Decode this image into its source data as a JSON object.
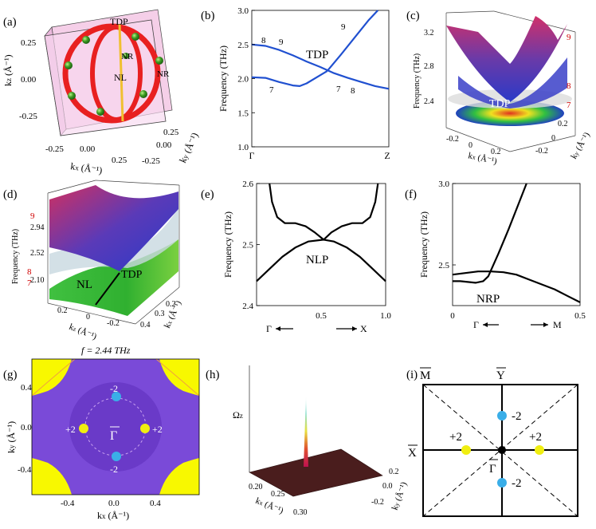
{
  "colors": {
    "band_blue": "#2050d0",
    "ring_red": "#e82020",
    "dot_blue": "#3aaee8",
    "dot_yellow": "#f0ee10",
    "surf_purple": "#6a3fd0",
    "yellow_bg": "#f8f800"
  },
  "panel_a": {
    "label": "(a)",
    "axis_z_label": "k",
    "axis_z_sub": "z",
    "axis_z_unit": " (Å⁻¹)",
    "axis_x_label": "k",
    "axis_x_sub": "x",
    "axis_x_unit": " (Å⁻¹)",
    "axis_y_label": "k",
    "axis_y_sub": "y",
    "axis_y_unit": " (Å⁻¹)",
    "z_ticks": [
      "0.25",
      "0.00",
      "-0.25"
    ],
    "x_ticks": [
      "-0.25",
      "0.00",
      "0.25"
    ],
    "y_ticks": [
      "0.25",
      "0.00",
      "-0.25"
    ],
    "tdp_label": "TDP",
    "nl_label": "NL",
    "nr_label_1": "NR",
    "nr_label_2": "NR"
  },
  "chart_data": [
    {
      "panel": "(b)",
      "type": "line",
      "ylabel": "Frequency (THz)",
      "ylim": [
        1.0,
        3.0
      ],
      "y_ticks": [
        "3.0",
        "2.5",
        "2.0",
        "1.5",
        "1.0"
      ],
      "x_ticks": [
        "Γ",
        "Z"
      ],
      "annotation": "TDP",
      "band_labels": [
        "8",
        "9",
        "7",
        "9",
        "7",
        "8"
      ],
      "series": [
        {
          "name": "band 8",
          "x": [
            0.0,
            0.1,
            0.2,
            0.3,
            0.4,
            0.5,
            0.6,
            0.7,
            0.8,
            0.9,
            1.0
          ],
          "values": [
            2.5,
            2.48,
            2.42,
            2.34,
            2.25,
            2.17,
            2.08,
            2.01,
            1.95,
            1.89,
            1.85
          ]
        },
        {
          "name": "band 7",
          "x": [
            0.0,
            0.1,
            0.2,
            0.3,
            0.35,
            0.4,
            0.5,
            0.55
          ],
          "values": [
            2.02,
            2.01,
            1.95,
            1.9,
            1.89,
            1.93,
            2.05,
            2.11
          ]
        },
        {
          "name": "band 9",
          "x": [
            0.55,
            0.65,
            0.75,
            0.85,
            0.92
          ],
          "values": [
            2.11,
            2.35,
            2.6,
            2.85,
            3.0
          ]
        }
      ]
    },
    {
      "panel": "(e)",
      "type": "line",
      "ylabel": "Frequency (THz)",
      "ylim": [
        2.4,
        2.6
      ],
      "y_ticks": [
        "2.6",
        "2.5",
        "2.4"
      ],
      "x_ticks": [
        "0.5",
        "1.0"
      ],
      "x_left": "Γ",
      "x_right": "X",
      "annotation": "NLP",
      "series": [
        {
          "name": "upper left",
          "x": [
            0.1,
            0.12,
            0.16,
            0.22,
            0.3,
            0.38,
            0.45,
            0.52
          ],
          "values": [
            2.6,
            2.57,
            2.545,
            2.535,
            2.535,
            2.53,
            2.52,
            2.508
          ]
        },
        {
          "name": "upper right",
          "x": [
            0.52,
            0.58,
            0.66,
            0.74,
            0.82,
            0.88,
            0.92,
            0.94
          ],
          "values": [
            2.508,
            2.52,
            2.53,
            2.535,
            2.535,
            2.545,
            2.57,
            2.6
          ]
        },
        {
          "name": "lower",
          "x": [
            0.0,
            0.1,
            0.2,
            0.3,
            0.4,
            0.52,
            0.6,
            0.7,
            0.8,
            0.9,
            1.0
          ],
          "values": [
            2.44,
            2.46,
            2.48,
            2.495,
            2.505,
            2.508,
            2.505,
            2.495,
            2.48,
            2.46,
            2.44
          ]
        }
      ]
    },
    {
      "panel": "(f)",
      "type": "line",
      "ylabel": "Frequency (THz)",
      "ylim": [
        2.25,
        3.0
      ],
      "y_ticks": [
        "3.0",
        "2.5"
      ],
      "x_ticks": [
        "0",
        "0.5"
      ],
      "x_left": "Γ",
      "x_right": "M",
      "annotation": "NRP",
      "series": [
        {
          "name": "flat",
          "x": [
            0.0,
            0.05,
            0.1,
            0.15,
            0.2,
            0.25,
            0.3,
            0.35,
            0.4,
            0.45,
            0.5
          ],
          "values": [
            2.44,
            2.45,
            2.46,
            2.46,
            2.455,
            2.44,
            2.41,
            2.38,
            2.35,
            2.31,
            2.27
          ]
        },
        {
          "name": "steep",
          "x": [
            0.0,
            0.03,
            0.06,
            0.09,
            0.12,
            0.14,
            0.18,
            0.22,
            0.26,
            0.29
          ],
          "values": [
            2.4,
            2.4,
            2.395,
            2.39,
            2.4,
            2.43,
            2.57,
            2.72,
            2.88,
            3.0
          ]
        }
      ]
    }
  ],
  "panel_c": {
    "label": "(c)",
    "ylabel": "Frequency (THz)",
    "y_ticks": [
      "3.2",
      "2.8",
      "2.4"
    ],
    "x_ticks": [
      "-0.2",
      "0",
      "0.2"
    ],
    "y2_ticks": [
      "0.2",
      "0",
      "-0.2"
    ],
    "band_labels": [
      "9",
      "8",
      "7"
    ],
    "annotation": "TDP",
    "kx_label": "k",
    "kx_sub": "x",
    "unit": " (Å⁻¹)",
    "ky_label": "k",
    "ky_sub": "y"
  },
  "panel_d": {
    "label": "(d)",
    "ylabel": "Frequency (THz)",
    "y_ticks": [
      "2.94",
      "2.52",
      "2.10"
    ],
    "x_ticks": [
      "0.2",
      "0",
      "-0.2"
    ],
    "z_ticks": [
      "0.2",
      "0.3",
      "0.4"
    ],
    "band_labels": [
      "9",
      "8",
      "7"
    ],
    "nl_label": "NL",
    "tdp_label": "TDP",
    "kx_label": "k",
    "kx_sub": "z",
    "unit": " (Å⁻¹)",
    "kz_label": "k",
    "kz_sub": "x"
  },
  "panel_g": {
    "label": "(g)",
    "title": "f = 2.44 THz",
    "y_ticks": [
      "0.4",
      "0.0",
      "-0.4"
    ],
    "x_ticks": [
      "-0.4",
      "0.0",
      "0.4"
    ],
    "ylabel": "k",
    "ylabel_sub": "y",
    "xlabel": "k",
    "xlabel_sub": "x",
    "unit": " (Å⁻¹)",
    "gamma_label": "Γ",
    "charges": [
      "-2",
      "+2",
      "+2",
      "-2"
    ]
  },
  "panel_h": {
    "label": "(h)",
    "zlabel": "Ω",
    "zlabel_sub": "z",
    "x_ticks": [
      "0.20",
      "0.25",
      "0.30"
    ],
    "y_ticks": [
      "0.2",
      "0.0",
      "-0.2"
    ],
    "kx_label": "k",
    "kx_sub": "x",
    "unit": " (Å⁻¹)",
    "ky_label": "k",
    "ky_sub": "y"
  },
  "panel_i": {
    "label": "(i)",
    "m_label": "M",
    "y_label": "Y",
    "x_label": "X",
    "gamma_label": "Γ",
    "charges": [
      "-2",
      "+2",
      "+2",
      "-2"
    ]
  }
}
